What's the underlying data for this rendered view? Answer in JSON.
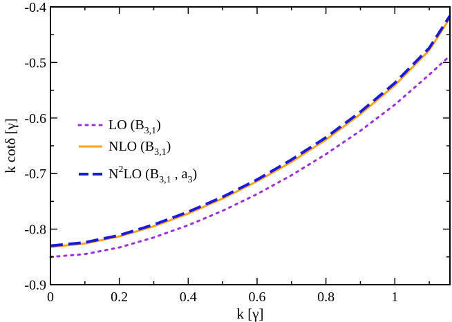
{
  "chart_data": {
    "type": "line",
    "title": "",
    "xlabel": "k [γ]",
    "ylabel": "k cotδ [γ]",
    "xlim": [
      0,
      1.16
    ],
    "ylim": [
      -0.9,
      -0.4
    ],
    "x_ticks": [
      0,
      0.2,
      0.4,
      0.6,
      0.8,
      1
    ],
    "x_tick_labels": [
      "0",
      "0.2",
      "0.4",
      "0.6",
      "0.8",
      "1"
    ],
    "y_ticks": [
      -0.9,
      -0.8,
      -0.7,
      -0.6,
      -0.5,
      -0.4
    ],
    "y_tick_labels": [
      "-0.9",
      "-0.8",
      "-0.7",
      "-0.6",
      "-0.5",
      "-0.4"
    ],
    "grid": false,
    "legend_position": "center-left",
    "series": [
      {
        "name": "LO (B3,1)",
        "legend": {
          "main": "LO (B",
          "sub": "3,1",
          "tail": ")"
        },
        "color": "#9b30d9",
        "style": "dotted",
        "x": [
          0,
          0.1,
          0.2,
          0.3,
          0.4,
          0.5,
          0.6,
          0.7,
          0.8,
          0.9,
          1.0,
          1.1,
          1.16
        ],
        "y": [
          -0.85,
          -0.845,
          -0.833,
          -0.815,
          -0.793,
          -0.767,
          -0.737,
          -0.703,
          -0.665,
          -0.623,
          -0.576,
          -0.522,
          -0.488
        ]
      },
      {
        "name": "NLO (B3,1)",
        "legend": {
          "main": "NLO (B",
          "sub": "3,1",
          "tail": ")"
        },
        "color": "#ffa31a",
        "style": "solid",
        "x": [
          0,
          0.1,
          0.2,
          0.3,
          0.4,
          0.5,
          0.6,
          0.7,
          0.8,
          0.9,
          1.0,
          1.1,
          1.16
        ],
        "y": [
          -0.832,
          -0.826,
          -0.813,
          -0.795,
          -0.772,
          -0.745,
          -0.714,
          -0.679,
          -0.639,
          -0.593,
          -0.541,
          -0.478,
          -0.42
        ]
      },
      {
        "name": "N2LO (B3,1 , a3)",
        "legend": {
          "main": "N",
          "sup": "2",
          "mid": "LO (B",
          "sub": "3,1",
          "tail": " , a",
          "sub2": "3",
          "tail2": ")"
        },
        "color": "#1a1adb",
        "style": "dashed",
        "x": [
          0,
          0.1,
          0.2,
          0.3,
          0.4,
          0.5,
          0.6,
          0.7,
          0.8,
          0.9,
          1.0,
          1.1,
          1.16
        ],
        "y": [
          -0.83,
          -0.824,
          -0.811,
          -0.792,
          -0.769,
          -0.742,
          -0.711,
          -0.675,
          -0.635,
          -0.589,
          -0.537,
          -0.474,
          -0.416
        ]
      }
    ]
  }
}
